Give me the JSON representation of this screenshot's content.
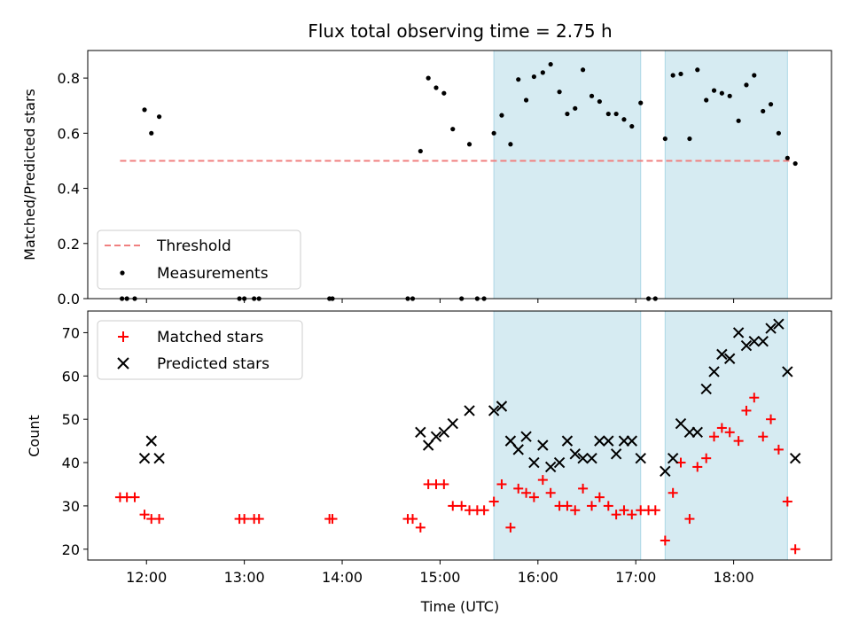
{
  "chart_data": {
    "title": "Flux total observing time = 2.75 h",
    "xlabel": "Time (UTC)",
    "xticks": [
      "12:00",
      "13:00",
      "14:00",
      "15:00",
      "16:00",
      "17:00",
      "18:00"
    ],
    "shaded_regions_hours": [
      [
        15.55,
        17.05
      ],
      [
        17.3,
        18.55
      ]
    ],
    "shade_color": "#add8e6",
    "panels": [
      {
        "id": "ratio",
        "type": "scatter",
        "ylabel": "Matched/Predicted stars",
        "ylim": [
          0,
          0.9
        ],
        "yticks": [
          "0.0",
          "0.2",
          "0.4",
          "0.6",
          "0.8"
        ],
        "threshold": {
          "label": "Threshold",
          "value": 0.5,
          "x_range_hours": [
            11.73,
            18.6
          ],
          "color": "#f08080"
        },
        "series": [
          {
            "name": "Measurements",
            "color": "#000000",
            "points": [
              [
                11.75,
                0
              ],
              [
                11.8,
                0
              ],
              [
                11.88,
                0
              ],
              [
                11.98,
                0.685
              ],
              [
                12.05,
                0.6
              ],
              [
                12.13,
                0.66
              ],
              [
                12.95,
                0
              ],
              [
                13.0,
                0
              ],
              [
                13.1,
                0
              ],
              [
                13.15,
                0
              ],
              [
                13.87,
                0
              ],
              [
                13.9,
                0
              ],
              [
                14.67,
                0
              ],
              [
                14.72,
                0
              ],
              [
                14.8,
                0.535
              ],
              [
                14.88,
                0.8
              ],
              [
                14.96,
                0.765
              ],
              [
                15.04,
                0.745
              ],
              [
                15.13,
                0.615
              ],
              [
                15.22,
                0
              ],
              [
                15.3,
                0.56
              ],
              [
                15.38,
                0
              ],
              [
                15.45,
                0
              ],
              [
                15.55,
                0.6
              ],
              [
                15.63,
                0.665
              ],
              [
                15.72,
                0.56
              ],
              [
                15.8,
                0.795
              ],
              [
                15.88,
                0.72
              ],
              [
                15.96,
                0.805
              ],
              [
                16.05,
                0.82
              ],
              [
                16.13,
                0.85
              ],
              [
                16.22,
                0.75
              ],
              [
                16.3,
                0.67
              ],
              [
                16.38,
                0.69
              ],
              [
                16.46,
                0.83
              ],
              [
                16.55,
                0.735
              ],
              [
                16.63,
                0.715
              ],
              [
                16.72,
                0.67
              ],
              [
                16.8,
                0.67
              ],
              [
                16.88,
                0.65
              ],
              [
                16.96,
                0.625
              ],
              [
                17.05,
                0.71
              ],
              [
                17.13,
                0
              ],
              [
                17.2,
                0
              ],
              [
                17.3,
                0.58
              ],
              [
                17.38,
                0.81
              ],
              [
                17.46,
                0.815
              ],
              [
                17.55,
                0.58
              ],
              [
                17.63,
                0.83
              ],
              [
                17.72,
                0.72
              ],
              [
                17.8,
                0.755
              ],
              [
                17.88,
                0.745
              ],
              [
                17.96,
                0.735
              ],
              [
                18.05,
                0.645
              ],
              [
                18.13,
                0.775
              ],
              [
                18.21,
                0.81
              ],
              [
                18.3,
                0.68
              ],
              [
                18.38,
                0.705
              ],
              [
                18.46,
                0.6
              ],
              [
                18.55,
                0.51
              ],
              [
                18.63,
                0.49
              ]
            ]
          }
        ],
        "legend_position": "lower-left"
      },
      {
        "id": "counts",
        "type": "scatter",
        "ylabel": "Count",
        "ylim": [
          17.5,
          75
        ],
        "yticks": [
          "20",
          "30",
          "40",
          "50",
          "60",
          "70"
        ],
        "series": [
          {
            "name": "Matched stars",
            "marker": "plus",
            "color": "#ff0000",
            "points": [
              [
                11.73,
                32
              ],
              [
                11.8,
                32
              ],
              [
                11.88,
                32
              ],
              [
                11.98,
                28
              ],
              [
                12.05,
                27
              ],
              [
                12.13,
                27
              ],
              [
                12.95,
                27
              ],
              [
                13.0,
                27
              ],
              [
                13.1,
                27
              ],
              [
                13.15,
                27
              ],
              [
                13.87,
                27
              ],
              [
                13.9,
                27
              ],
              [
                14.67,
                27
              ],
              [
                14.72,
                27
              ],
              [
                14.8,
                25
              ],
              [
                14.88,
                35
              ],
              [
                14.96,
                35
              ],
              [
                15.04,
                35
              ],
              [
                15.13,
                30
              ],
              [
                15.22,
                30
              ],
              [
                15.3,
                29
              ],
              [
                15.38,
                29
              ],
              [
                15.45,
                29
              ],
              [
                15.55,
                31
              ],
              [
                15.63,
                35
              ],
              [
                15.72,
                25
              ],
              [
                15.8,
                34
              ],
              [
                15.88,
                33
              ],
              [
                15.96,
                32
              ],
              [
                16.05,
                36
              ],
              [
                16.13,
                33
              ],
              [
                16.22,
                30
              ],
              [
                16.3,
                30
              ],
              [
                16.38,
                29
              ],
              [
                16.46,
                34
              ],
              [
                16.55,
                30
              ],
              [
                16.63,
                32
              ],
              [
                16.72,
                30
              ],
              [
                16.8,
                28
              ],
              [
                16.88,
                29
              ],
              [
                16.96,
                28
              ],
              [
                17.05,
                29
              ],
              [
                17.13,
                29
              ],
              [
                17.2,
                29
              ],
              [
                17.3,
                22
              ],
              [
                17.38,
                33
              ],
              [
                17.46,
                40
              ],
              [
                17.55,
                27
              ],
              [
                17.63,
                39
              ],
              [
                17.72,
                41
              ],
              [
                17.8,
                46
              ],
              [
                17.88,
                48
              ],
              [
                17.96,
                47
              ],
              [
                18.05,
                45
              ],
              [
                18.13,
                52
              ],
              [
                18.21,
                55
              ],
              [
                18.3,
                46
              ],
              [
                18.38,
                50
              ],
              [
                18.46,
                43
              ],
              [
                18.55,
                31
              ],
              [
                18.63,
                20
              ]
            ]
          },
          {
            "name": "Predicted stars",
            "marker": "x",
            "color": "#000000",
            "points": [
              [
                11.98,
                41
              ],
              [
                12.05,
                45
              ],
              [
                12.13,
                41
              ],
              [
                14.8,
                47
              ],
              [
                14.88,
                44
              ],
              [
                14.96,
                46
              ],
              [
                15.04,
                47
              ],
              [
                15.13,
                49
              ],
              [
                15.3,
                52
              ],
              [
                15.55,
                52
              ],
              [
                15.63,
                53
              ],
              [
                15.72,
                45
              ],
              [
                15.8,
                43
              ],
              [
                15.88,
                46
              ],
              [
                15.96,
                40
              ],
              [
                16.05,
                44
              ],
              [
                16.13,
                39
              ],
              [
                16.22,
                40
              ],
              [
                16.3,
                45
              ],
              [
                16.38,
                42
              ],
              [
                16.46,
                41
              ],
              [
                16.55,
                41
              ],
              [
                16.63,
                45
              ],
              [
                16.72,
                45
              ],
              [
                16.8,
                42
              ],
              [
                16.88,
                45
              ],
              [
                16.96,
                45
              ],
              [
                17.05,
                41
              ],
              [
                17.3,
                38
              ],
              [
                17.38,
                41
              ],
              [
                17.46,
                49
              ],
              [
                17.55,
                47
              ],
              [
                17.63,
                47
              ],
              [
                17.72,
                57
              ],
              [
                17.8,
                61
              ],
              [
                17.88,
                65
              ],
              [
                17.96,
                64
              ],
              [
                18.05,
                70
              ],
              [
                18.13,
                67
              ],
              [
                18.21,
                68
              ],
              [
                18.3,
                68
              ],
              [
                18.38,
                71
              ],
              [
                18.46,
                72
              ],
              [
                18.55,
                61
              ],
              [
                18.63,
                41
              ]
            ]
          }
        ],
        "legend_position": "upper-left"
      }
    ]
  }
}
